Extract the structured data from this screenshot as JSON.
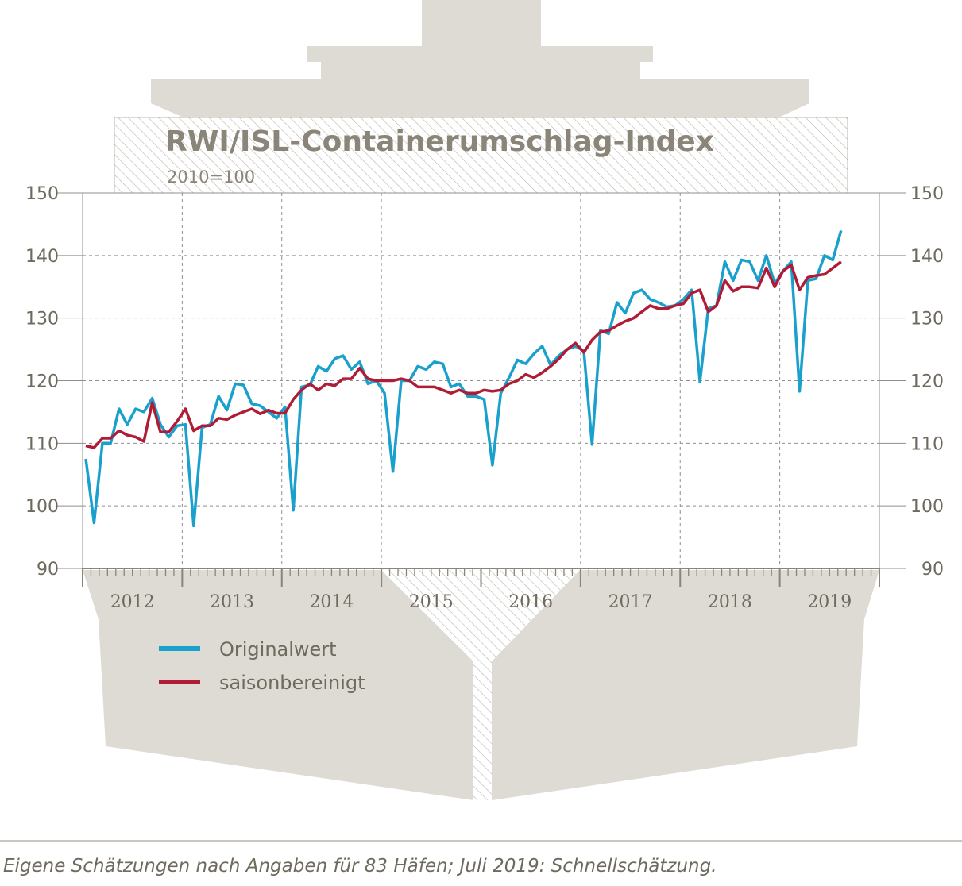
{
  "colors": {
    "original": "#1aa0cc",
    "seasonal": "#b01c36",
    "ship": "#dedad4",
    "text": "#6f6a5e",
    "grid": "#888888"
  },
  "title": "RWI/ISL-Containerumschlag-Index",
  "subtitle": "2010=100",
  "footer": "Eigene Schätzungen nach Angaben für 83 Häfen; Juli 2019: Schnellschätzung.",
  "chart_data": {
    "type": "line",
    "title": "RWI/ISL-Containerumschlag-Index",
    "subtitle": "2010=100",
    "ylim": [
      90,
      150
    ],
    "yticks": [
      90,
      100,
      110,
      120,
      130,
      140,
      150
    ],
    "x_start": "2012-01",
    "x_end": "2019-07",
    "x_unit": "month",
    "years": [
      "2012",
      "2013",
      "2014",
      "2015",
      "2016",
      "2017",
      "2018",
      "2019"
    ],
    "grid": true,
    "legend_position": "bottom-left",
    "series": [
      {
        "name": "Originalwert",
        "color": "#1aa0cc",
        "values": [
          107.5,
          97.3,
          110.0,
          110.0,
          115.5,
          113.0,
          115.5,
          115.0,
          117.2,
          113.0,
          111.0,
          112.8,
          113.0,
          96.8,
          112.5,
          113.0,
          117.5,
          115.3,
          119.5,
          119.3,
          116.3,
          116.0,
          115.0,
          114.0,
          115.8,
          99.3,
          119.0,
          119.3,
          122.3,
          121.5,
          123.5,
          124.0,
          121.8,
          123.0,
          119.5,
          120.0,
          118.0,
          105.5,
          120.0,
          120.0,
          122.3,
          121.8,
          123.0,
          122.7,
          119.0,
          119.5,
          117.5,
          117.5,
          117.0,
          106.5,
          118.0,
          120.5,
          123.3,
          122.7,
          124.3,
          125.5,
          122.5,
          124.0,
          125.0,
          125.5,
          124.8,
          109.8,
          128.0,
          127.5,
          132.5,
          130.8,
          134.0,
          134.5,
          133.0,
          132.5,
          131.8,
          132.0,
          133.0,
          134.5,
          119.8,
          131.5,
          132.0,
          139.0,
          136.0,
          139.3,
          139.0,
          136.0,
          140.0,
          135.5,
          137.5,
          139.0,
          118.3,
          136.0,
          136.3,
          140.0,
          139.3,
          144.0
        ]
      },
      {
        "name": "saisonbereinigt",
        "color": "#b01c36",
        "values": [
          109.6,
          109.3,
          110.8,
          110.8,
          112.0,
          111.3,
          111.0,
          110.3,
          116.5,
          111.8,
          111.8,
          113.5,
          115.5,
          112.0,
          112.8,
          112.8,
          114.0,
          113.8,
          114.5,
          115.0,
          115.5,
          114.7,
          115.3,
          114.8,
          114.8,
          117.0,
          118.5,
          119.5,
          118.5,
          119.5,
          119.2,
          120.3,
          120.3,
          122.0,
          120.3,
          120.0,
          120.0,
          120.0,
          120.3,
          120.0,
          119.0,
          119.0,
          119.0,
          118.5,
          118.0,
          118.5,
          118.0,
          118.0,
          118.5,
          118.3,
          118.5,
          119.5,
          120.0,
          121.0,
          120.5,
          121.3,
          122.3,
          123.5,
          125.0,
          126.0,
          124.5,
          126.5,
          127.8,
          128.0,
          128.8,
          129.5,
          130.0,
          131.0,
          132.0,
          131.5,
          131.5,
          132.0,
          132.3,
          134.0,
          134.5,
          131.0,
          132.0,
          136.0,
          134.3,
          135.0,
          135.0,
          134.8,
          138.0,
          135.0,
          137.5,
          138.5,
          134.5,
          136.5,
          136.8,
          137.0,
          138.0,
          139.0
        ]
      }
    ]
  }
}
